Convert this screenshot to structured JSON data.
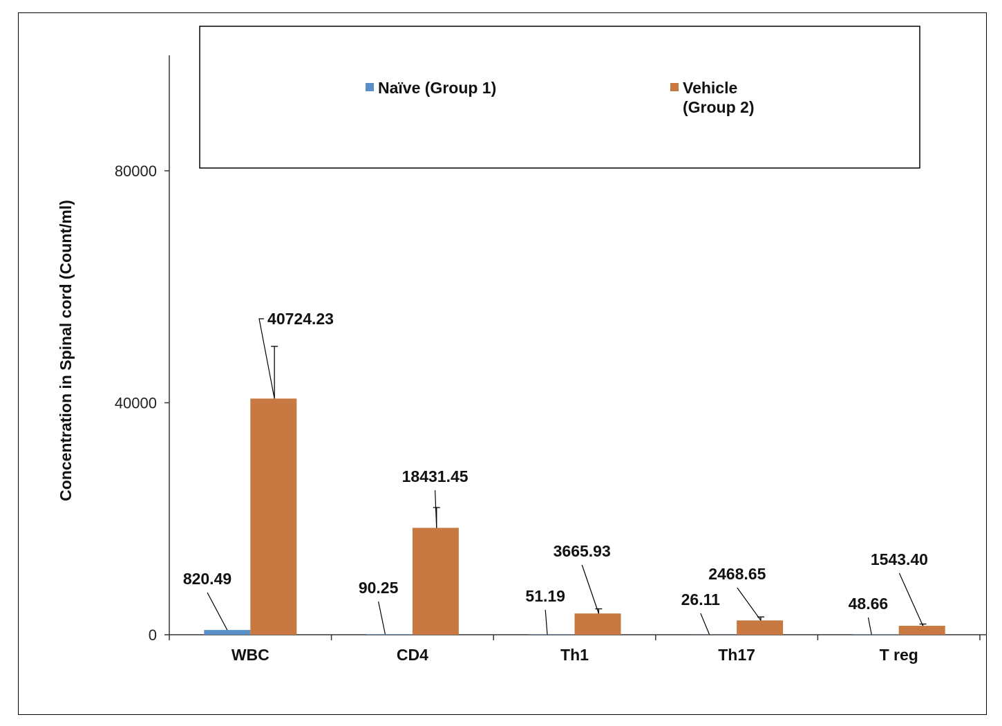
{
  "chart_data": {
    "type": "bar",
    "categories": [
      "WBC",
      "CD4",
      "Th1",
      "Th17",
      "T reg"
    ],
    "series": [
      {
        "name": "Naïve (Group 1)",
        "color": "#5b8fc7",
        "values": [
          820.49,
          90.25,
          51.19,
          26.11,
          48.66
        ],
        "labels": [
          "820.49",
          "90.25",
          "51.19",
          "26.11",
          "48.66"
        ],
        "errors": [
          0,
          0,
          0,
          0,
          0
        ]
      },
      {
        "name_lines": [
          "Vehicle",
          "(Group 2)"
        ],
        "color": "#c87941",
        "values": [
          40724.23,
          18431.45,
          3665.93,
          2468.65,
          1543.4
        ],
        "labels": [
          "40724.23",
          "18431.45",
          "3665.93",
          "2468.65",
          "1543.40"
        ],
        "errors": [
          9000,
          3500,
          800,
          600,
          300
        ]
      }
    ],
    "ylabel": "Concentration in  Spinal cord (Count/ml)",
    "ylim": [
      0,
      80000
    ],
    "yticks": [
      0,
      40000,
      80000
    ],
    "ytick_labels": [
      "0",
      "40000",
      "80000"
    ],
    "grid": false,
    "legend_position": "top"
  }
}
